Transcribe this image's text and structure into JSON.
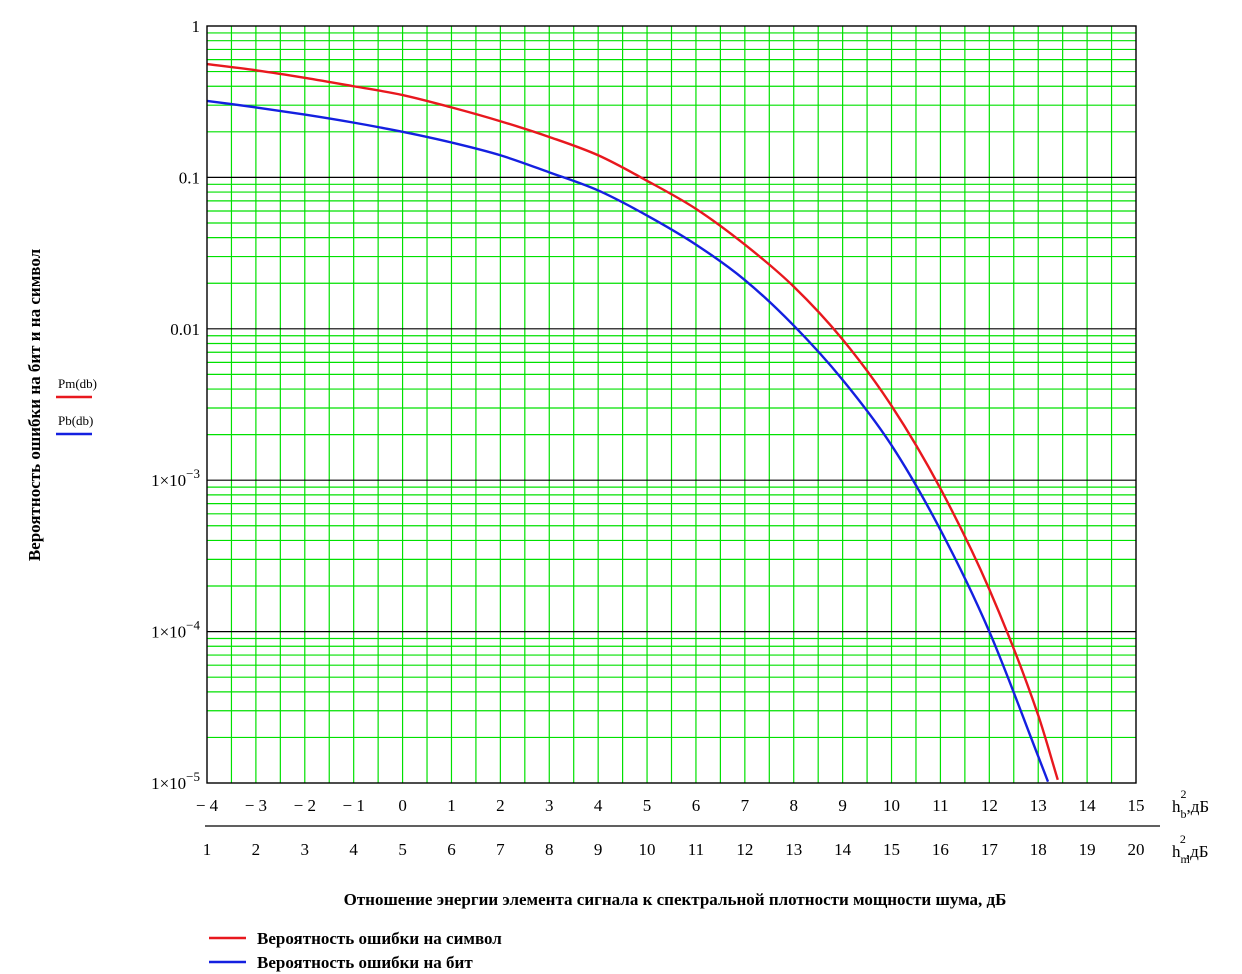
{
  "chart_data": {
    "type": "line",
    "y_scale": "log",
    "ylim": [
      1e-05,
      1
    ],
    "y_ticks": [
      {
        "value": 1,
        "mantissa": "1"
      },
      {
        "value": 0.1,
        "mantissa": "0.1"
      },
      {
        "value": 0.01,
        "mantissa": "0.01"
      },
      {
        "value": 0.001,
        "mantissa": "1×10",
        "exponent": "−3"
      },
      {
        "value": 0.0001,
        "mantissa": "1×10",
        "exponent": "−4"
      },
      {
        "value": 1e-05,
        "mantissa": "1×10",
        "exponent": "−5"
      }
    ],
    "xlim": [
      -4,
      15
    ],
    "x_ticks_b": [
      "− 4",
      "− 3",
      "− 2",
      "− 1",
      "0",
      "1",
      "2",
      "3",
      "4",
      "5",
      "6",
      "7",
      "8",
      "9",
      "10",
      "11",
      "12",
      "13",
      "14",
      "15"
    ],
    "x_ticks_m": [
      "1",
      "2",
      "3",
      "4",
      "5",
      "6",
      "7",
      "8",
      "9",
      "10",
      "11",
      "12",
      "13",
      "14",
      "15",
      "16",
      "17",
      "18",
      "19",
      "20"
    ],
    "x_unit_b": {
      "base": "h",
      "sub": "b",
      "sup": "2",
      "tail": ",дБ"
    },
    "x_unit_m": {
      "base": "h",
      "sub": "m",
      "sup": "2",
      "tail": ",дБ"
    },
    "xlabel": "Отношение энергии элемента сигнала к спектральной плотности мощности шума, дБ",
    "ylabel": "Вероятность ошибки на бит и на символ",
    "grid": true,
    "series": [
      {
        "name": "Вероятность ошибки на символ",
        "trace_label": "Pm(db)",
        "color": "#e8181e",
        "x": [
          -4,
          -3,
          -2,
          -1,
          0,
          1,
          2,
          3,
          4,
          5,
          6,
          7,
          8,
          9,
          10,
          11,
          12,
          13,
          13.4
        ],
        "y": [
          0.56,
          0.51,
          0.455,
          0.4,
          0.35,
          0.29,
          0.235,
          0.185,
          0.14,
          0.095,
          0.062,
          0.036,
          0.019,
          0.0085,
          0.0031,
          0.00088,
          0.00019,
          2.8e-05,
          1.05e-05
        ]
      },
      {
        "name": "Вероятность ошибки на бит",
        "trace_label": "Pb(db)",
        "color": "#1420e0",
        "x": [
          -4,
          -3,
          -2,
          -1,
          0,
          1,
          2,
          3,
          4,
          5,
          6,
          7,
          8,
          9,
          10,
          11,
          12,
          13,
          13.2
        ],
        "y": [
          0.32,
          0.29,
          0.26,
          0.23,
          0.2,
          0.17,
          0.14,
          0.108,
          0.082,
          0.056,
          0.036,
          0.021,
          0.0105,
          0.0046,
          0.0017,
          0.00047,
          0.0001,
          1.5e-05,
          1.02e-05
        ]
      }
    ]
  },
  "colors": {
    "grid_minor": "#00e100",
    "grid_major": "#000000",
    "frame": "#000000"
  }
}
